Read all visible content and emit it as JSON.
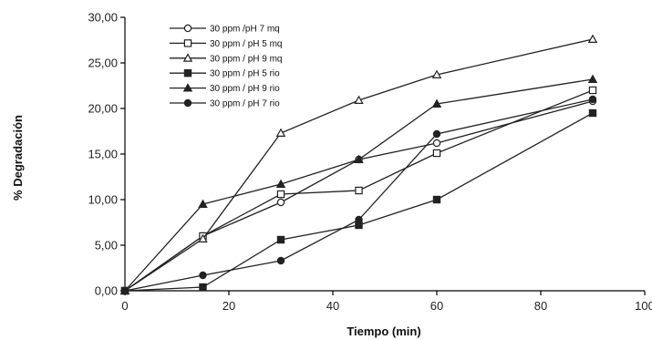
{
  "chart_data": {
    "type": "line",
    "xlabel": "Tiempo (min)",
    "ylabel": "% Degradación",
    "xlim": [
      0,
      100
    ],
    "ylim": [
      0,
      30
    ],
    "x_ticks": [
      "0",
      "20",
      "40",
      "60",
      "80",
      "100"
    ],
    "y_ticks": [
      "0,00",
      "5,00",
      "10,00",
      "15,00",
      "20,00",
      "25,00",
      "30,00"
    ],
    "grid": false,
    "legend_position": "top-left",
    "series": [
      {
        "name": "30 ppm /pH 7 mq",
        "marker": "circle-open",
        "x": [
          0,
          15,
          30,
          45,
          60,
          90
        ],
        "values": [
          0,
          6.0,
          9.7,
          14.4,
          16.2,
          20.8
        ]
      },
      {
        "name": "30 ppm / pH 5 mq",
        "marker": "square-open",
        "x": [
          0,
          15,
          30,
          45,
          60,
          90
        ],
        "values": [
          0,
          6.0,
          10.6,
          11.0,
          15.1,
          22.0
        ]
      },
      {
        "name": "30 ppm / pH 9 mq",
        "marker": "triangle-open",
        "x": [
          0,
          15,
          30,
          45,
          60,
          90
        ],
        "values": [
          0,
          5.7,
          17.3,
          20.9,
          23.7,
          27.6
        ]
      },
      {
        "name": "30 ppm / pH 5 rio",
        "marker": "square-filled",
        "x": [
          0,
          15,
          30,
          45,
          60,
          90
        ],
        "values": [
          0,
          0.4,
          5.6,
          7.2,
          10.0,
          19.5
        ]
      },
      {
        "name": "30 ppm / pH 9 rio",
        "marker": "triangle-filled",
        "x": [
          0,
          15,
          30,
          45,
          60,
          90
        ],
        "values": [
          0,
          9.5,
          11.7,
          14.4,
          20.5,
          23.2
        ]
      },
      {
        "name": "30 ppm / pH 7 rio",
        "marker": "circle-filled",
        "x": [
          0,
          15,
          30,
          45,
          60,
          90
        ],
        "values": [
          0,
          1.7,
          3.3,
          7.8,
          17.2,
          21.0
        ]
      }
    ],
    "colors": {
      "line": "#222222",
      "marker": "#222222"
    }
  }
}
